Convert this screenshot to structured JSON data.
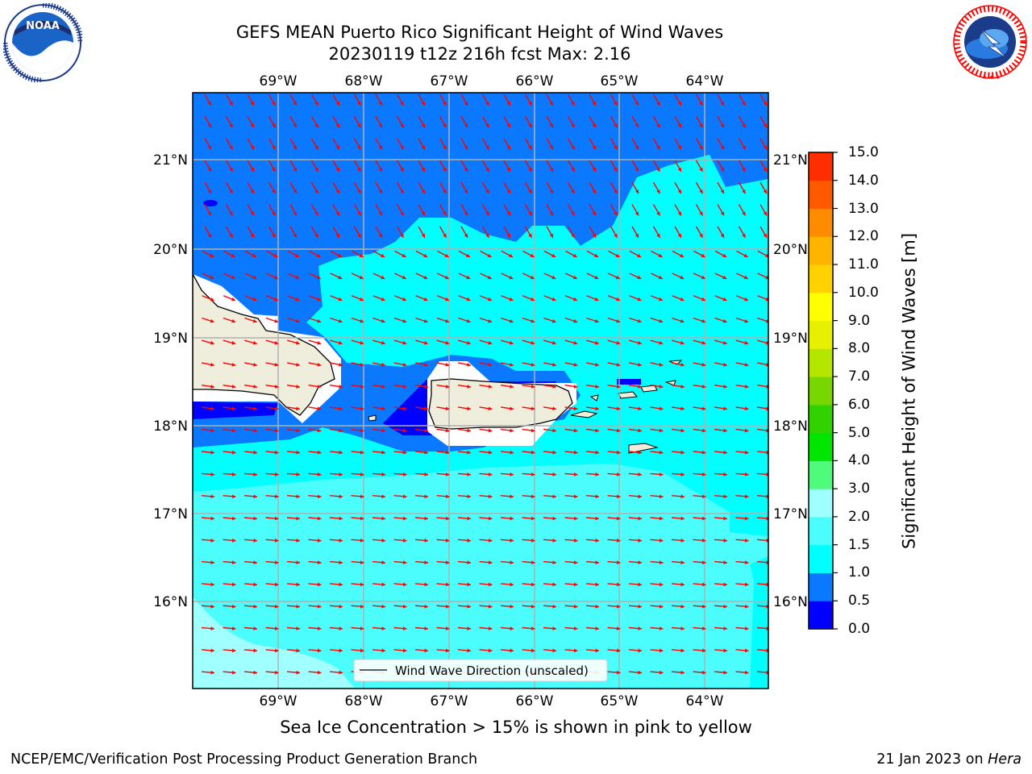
{
  "title_line1": "GEFS MEAN Puerto Rico Significant Height of Wind Waves",
  "title_line2": "20230119 t12z 216h fcst   Max: 2.16",
  "logos": {
    "noaa_text": "NOAA",
    "noaa_ring_text": "NATIONAL OCEANIC AND ATMOSPHERIC ADMINISTRATION · U.S. DEPARTMENT OF COMMERCE",
    "nws_ring_text": "NATIONAL WEATHER SERVICE"
  },
  "map": {
    "lon_ticks": [
      "69°W",
      "68°W",
      "67°W",
      "66°W",
      "65°W",
      "64°W"
    ],
    "lat_ticks": [
      "21°N",
      "20°N",
      "19°N",
      "18°N",
      "17°N",
      "16°N"
    ],
    "legend_label": "Wind Wave Direction (unscaled)",
    "arrow_color": "#ff0000",
    "land_color": "#efeddc",
    "no_data_color": "#ffffff",
    "grid_color": "#b0b0b0"
  },
  "colorbar": {
    "label": "Significant Height of Wind Waves [m]",
    "tick_labels": [
      "0.0",
      "0.5",
      "1.0",
      "1.5",
      "2.0",
      "3.0",
      "4.0",
      "5.0",
      "6.0",
      "7.0",
      "8.0",
      "9.0",
      "10.0",
      "11.0",
      "12.0",
      "13.0",
      "14.0",
      "15.0"
    ],
    "colors": [
      "#0000ff",
      "#0a78ff",
      "#00ffff",
      "#4cfdfd",
      "#a0ffff",
      "#50fa7a",
      "#00e600",
      "#32d200",
      "#78d700",
      "#b4e600",
      "#e6f000",
      "#ffff00",
      "#ffd200",
      "#ffb400",
      "#ff8c00",
      "#ff5a00",
      "#ff2d00"
    ]
  },
  "footer": {
    "note": "Sea Ice Concentration > 15% is shown in pink to yellow",
    "left": "NCEP/EMC/Verification Post Processing Product Generation Branch",
    "right_date": "21 Jan 2023 on",
    "right_host": "Hera"
  }
}
